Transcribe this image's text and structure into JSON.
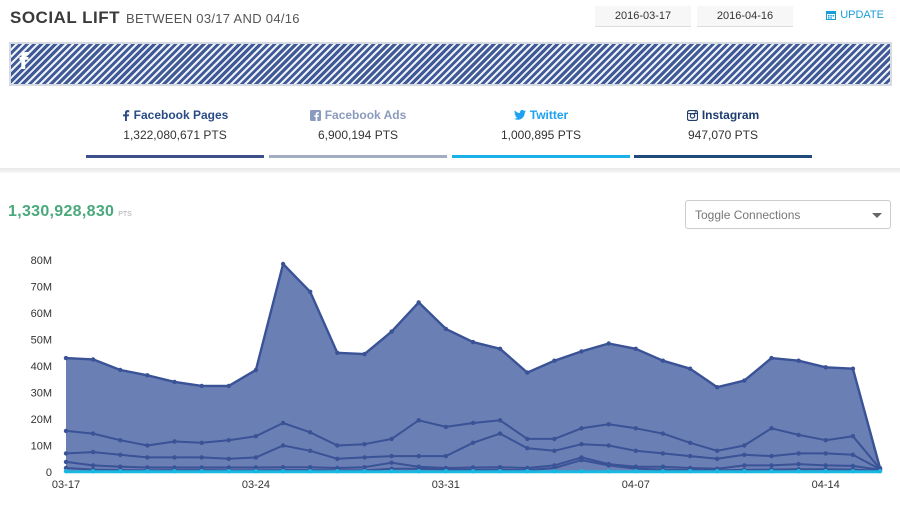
{
  "header": {
    "title": "SOCIAL LIFT",
    "subtitle": "BETWEEN 03/17 AND 04/16",
    "start_date": "2016-03-17",
    "end_date": "2016-04-16",
    "update_label": "UPDATE",
    "update_icon": "calendar-icon"
  },
  "banner": {
    "icon": "facebook-icon",
    "letter": "f"
  },
  "tabs": [
    {
      "label": "Facebook Pages",
      "value": "1,322,080,671 PTS",
      "icon": "facebook-icon",
      "color": "#2a4b86",
      "bar": "#3d4f8a"
    },
    {
      "label": "Facebook Ads",
      "value": "6,900,194 PTS",
      "icon": "facebook-square-icon",
      "color": "#8a9bbd",
      "bar": "#a3adc2"
    },
    {
      "label": "Twitter",
      "value": "1,000,895 PTS",
      "icon": "twitter-icon",
      "color": "#1da1f2",
      "bar": "#1ab0e8"
    },
    {
      "label": "Instagram",
      "value": "947,070 PTS",
      "icon": "instagram-icon",
      "color": "#1e3c6e",
      "bar": "#1f4a7a"
    }
  ],
  "total": {
    "value": "1,330,928,830",
    "unit": "PTS"
  },
  "toggle": {
    "label": "Toggle Connections"
  },
  "chart_data": {
    "type": "area",
    "title": "",
    "xlabel": "",
    "ylabel": "",
    "x": [
      "03-17",
      "03-18",
      "03-19",
      "03-20",
      "03-21",
      "03-22",
      "03-23",
      "03-24",
      "03-25",
      "03-26",
      "03-27",
      "03-28",
      "03-29",
      "03-30",
      "03-31",
      "04-01",
      "04-02",
      "04-03",
      "04-04",
      "04-05",
      "04-06",
      "04-07",
      "04-08",
      "04-09",
      "04-10",
      "04-11",
      "04-12",
      "04-13",
      "04-14",
      "04-15",
      "04-16"
    ],
    "x_tick_labels": [
      "03-17",
      "03-24",
      "03-31",
      "04-07",
      "04-14"
    ],
    "y_tick_labels": [
      "0",
      "10M",
      "20M",
      "30M",
      "40M",
      "50M",
      "60M",
      "70M",
      "80M"
    ],
    "ylim": [
      0,
      80000000
    ],
    "grid": false,
    "legend": "none",
    "fill_color": "#6a7fb4",
    "line_color": "#3a5296",
    "cyan_color": "#1ab7e0",
    "series": [
      {
        "values": [
          43000000,
          42500000,
          38500000,
          36500000,
          34000000,
          32500000,
          32500000,
          38500000,
          78500000,
          68000000,
          45000000,
          44500000,
          53000000,
          64000000,
          54000000,
          49000000,
          46500000,
          37500000,
          42000000,
          45500000,
          48500000,
          46500000,
          42000000,
          39000000,
          32000000,
          34500000,
          43000000,
          42000000,
          39500000,
          39000000,
          1500000
        ]
      },
      {
        "values": [
          15500000,
          14500000,
          12000000,
          10000000,
          11500000,
          11000000,
          12000000,
          13500000,
          18500000,
          15000000,
          10000000,
          10500000,
          12500000,
          19500000,
          17000000,
          18500000,
          19500000,
          12500000,
          12500000,
          16500000,
          18000000,
          16500000,
          14500000,
          11000000,
          8000000,
          10000000,
          16500000,
          14000000,
          12000000,
          13500000,
          1200000
        ]
      },
      {
        "values": [
          7000000,
          7500000,
          6500000,
          5500000,
          5500000,
          5500000,
          5000000,
          5500000,
          10000000,
          8000000,
          5000000,
          5500000,
          6000000,
          6000000,
          6000000,
          11000000,
          14500000,
          9000000,
          8000000,
          10500000,
          10000000,
          8000000,
          7000000,
          6000000,
          5000000,
          6500000,
          6000000,
          7000000,
          7000000,
          6500000,
          1000000
        ]
      },
      {
        "values": [
          3800000,
          2500000,
          2000000,
          1700000,
          1700000,
          1700000,
          1700000,
          1700000,
          1800000,
          1800000,
          1500000,
          1800000,
          3500000,
          2000000,
          1500000,
          1700000,
          1800000,
          1500000,
          2500000,
          5500000,
          3000000,
          2000000,
          2000000,
          1500000,
          1200000,
          2500000,
          2500000,
          3000000,
          2500000,
          2300000,
          800000
        ]
      },
      {
        "values": [
          1500000,
          900000,
          700000,
          600000,
          700000,
          700000,
          600000,
          600000,
          700000,
          700000,
          600000,
          600000,
          1200000,
          1200000,
          900000,
          800000,
          800000,
          700000,
          1500000,
          4500000,
          2500000,
          1300000,
          900000,
          700000,
          600000,
          800000,
          900000,
          1000000,
          1000000,
          900000,
          400000
        ]
      },
      {
        "values": [
          300000,
          300000,
          300000,
          300000,
          300000,
          300000,
          300000,
          300000,
          300000,
          300000,
          300000,
          300000,
          300000,
          300000,
          300000,
          300000,
          300000,
          300000,
          300000,
          300000,
          300000,
          300000,
          300000,
          300000,
          300000,
          300000,
          300000,
          300000,
          300000,
          300000,
          300000
        ]
      }
    ]
  }
}
